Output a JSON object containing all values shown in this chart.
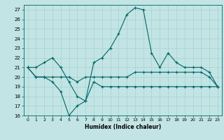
{
  "xlabel": "Humidex (Indice chaleur)",
  "xlim": [
    -0.5,
    23.5
  ],
  "ylim": [
    16,
    27.5
  ],
  "yticks": [
    16,
    17,
    18,
    19,
    20,
    21,
    22,
    23,
    24,
    25,
    26,
    27
  ],
  "xticks": [
    0,
    1,
    2,
    3,
    4,
    5,
    6,
    7,
    8,
    9,
    10,
    11,
    12,
    13,
    14,
    15,
    16,
    17,
    18,
    19,
    20,
    21,
    22,
    23
  ],
  "bg_color": "#c2e4e4",
  "grid_color": "#a8d0d0",
  "line_color": "#006666",
  "line1_x": [
    0,
    1,
    2,
    3,
    4,
    5,
    6,
    7,
    8,
    9,
    10,
    11,
    12,
    13,
    14,
    15,
    16,
    17,
    18,
    19,
    20,
    21,
    22,
    23
  ],
  "line1_y": [
    21.0,
    21.0,
    21.5,
    22.0,
    21.0,
    19.5,
    18.0,
    17.5,
    21.5,
    22.0,
    23.0,
    24.5,
    26.5,
    27.2,
    27.0,
    22.5,
    21.0,
    22.5,
    21.5,
    21.0,
    21.0,
    21.0,
    20.5,
    19.0
  ],
  "line2_x": [
    0,
    1,
    2,
    3,
    4,
    5,
    6,
    7,
    8,
    9,
    10,
    11,
    12,
    13,
    14,
    15,
    16,
    17,
    18,
    19,
    20,
    21,
    22,
    23
  ],
  "line2_y": [
    21.0,
    20.0,
    20.0,
    20.0,
    20.0,
    20.0,
    19.5,
    20.0,
    20.0,
    20.0,
    20.0,
    20.0,
    20.0,
    20.5,
    20.5,
    20.5,
    20.5,
    20.5,
    20.5,
    20.5,
    20.5,
    20.5,
    20.0,
    19.0
  ],
  "line3_x": [
    0,
    1,
    2,
    3,
    4,
    5,
    6,
    7,
    8,
    9,
    10,
    11,
    12,
    13,
    14,
    15,
    16,
    17,
    18,
    19,
    20,
    21,
    22,
    23
  ],
  "line3_y": [
    21.0,
    20.0,
    20.0,
    19.5,
    18.5,
    16.0,
    17.0,
    17.5,
    19.5,
    19.0,
    19.0,
    19.0,
    19.0,
    19.0,
    19.0,
    19.0,
    19.0,
    19.0,
    19.0,
    19.0,
    19.0,
    19.0,
    19.0,
    19.0
  ]
}
